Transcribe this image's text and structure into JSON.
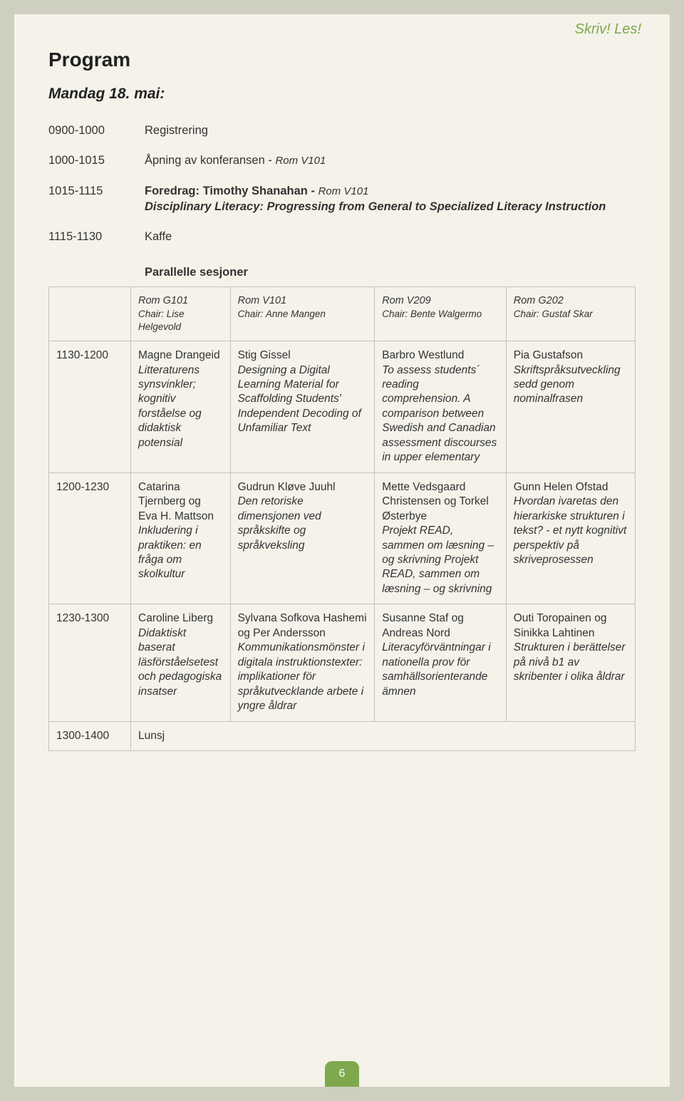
{
  "brand": "Skriv! Les!",
  "title": "Program",
  "day": "Mandag 18. mai:",
  "page_number": "6",
  "colors": {
    "accent": "#7fa84c",
    "page_bg": "#f4f2e9",
    "outer_bg": "#cfcfbf",
    "border": "#c5c3b8"
  },
  "simple_rows": [
    {
      "time": "0900-1000",
      "line1": "Registrering"
    },
    {
      "time": "1000-1015",
      "line1": "Åpning av konferansen - ",
      "room1": "Rom V101"
    },
    {
      "time": "1015-1115",
      "line1": "Foredrag: Timothy Shanahan - ",
      "room1": "Rom V101",
      "line2": "Disciplinary Literacy: Progressing from General to Specialized Literacy Instruction"
    },
    {
      "time": "1115-1130",
      "line1": "Kaffe"
    }
  ],
  "parallel_label": "Parallelle sesjoner",
  "header_cells": [
    {
      "room": "Rom G101",
      "chair": "Chair: Lise Helgevold"
    },
    {
      "room": "Rom V101",
      "chair": "Chair: Anne Mangen"
    },
    {
      "room": "Rom V209",
      "chair": "Chair: Bente Walgermo"
    },
    {
      "room": "Rom G202",
      "chair": "Chair: Gustaf Skar"
    }
  ],
  "grid_rows": [
    {
      "time": "1130-1200",
      "cells": [
        {
          "presenter": "Magne Drangeid",
          "title": "Litteraturens synsvinkler; kognitiv forståelse og didaktisk potensial"
        },
        {
          "presenter": "Stig Gissel",
          "title": "Designing a Digital Learning Material for Scaffolding Students' Independent Decoding of Unfamiliar Text"
        },
        {
          "presenter": "Barbro Westlund",
          "title": "To assess students´ reading comprehension. A comparison between Swedish and Canadian assessment discourses in upper elementary"
        },
        {
          "presenter": "Pia Gustafson",
          "title": "Skriftspråksutveckling sedd genom nominalfrasen"
        }
      ]
    },
    {
      "time": "1200-1230",
      "cells": [
        {
          "presenter": "Catarina Tjernberg og Eva H. Mattson",
          "title": "Inkludering i praktiken: en fråga om skolkultur"
        },
        {
          "presenter": "Gudrun Kløve Juuhl",
          "title": "Den retoriske dimensjonen ved språkskifte og språkveksling"
        },
        {
          "presenter": "Mette Vedsgaard Christensen og Torkel Østerbye",
          "title": "Projekt READ, sammen om læsning – og skrivning Projekt READ, sammen om læsning – og skrivning"
        },
        {
          "presenter": "Gunn Helen Ofstad",
          "title": "Hvordan ivaretas den hierarkiske strukturen i tekst? - et nytt kognitivt perspektiv på skriveprosessen"
        }
      ]
    },
    {
      "time": "1230-1300",
      "cells": [
        {
          "presenter": "Caroline Liberg",
          "title": "Didaktiskt baserat läsförståelsetest och pedagogiska insatser"
        },
        {
          "presenter": "Sylvana Sofkova Hashemi og Per Andersson",
          "title": "Kommunikationsmönster i digitala instruktionstexter: implikationer för språkutvecklande arbete i yngre åldrar"
        },
        {
          "presenter": "Susanne Staf og Andreas Nord",
          "title": "Literacyförväntningar i nationella prov för samhällsorienterande ämnen"
        },
        {
          "presenter": "Outi Toropainen og Sinikka Lahtinen",
          "title": "Strukturen i berättelser på nivå b1 av skribenter i olika åldrar"
        }
      ]
    }
  ],
  "final_row": {
    "time": "1300-1400",
    "label": "Lunsj"
  }
}
